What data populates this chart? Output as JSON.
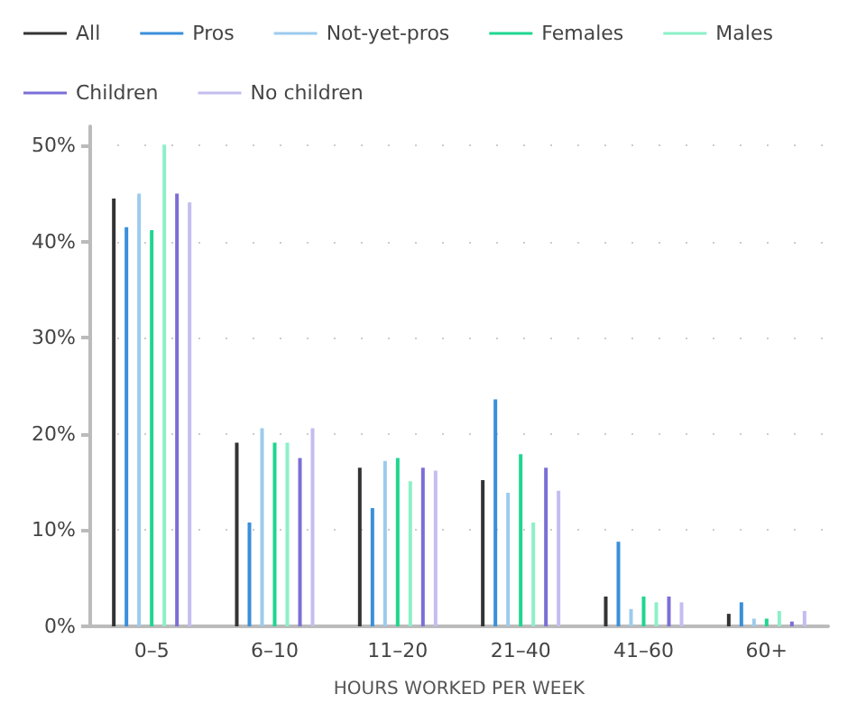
{
  "chart_data": {
    "type": "bar",
    "xlabel": "HOURS WORKED PER WEEK",
    "categories": [
      "0–5",
      "6–10",
      "11–20",
      "21–40",
      "41–60",
      "60+"
    ],
    "series": [
      {
        "name": "All",
        "color": "#333333",
        "values": [
          44.5,
          19.1,
          16.5,
          15.2,
          3.1,
          1.3
        ]
      },
      {
        "name": "Pros",
        "color": "#3a8fd9",
        "values": [
          41.5,
          10.8,
          12.3,
          23.6,
          8.8,
          2.5
        ]
      },
      {
        "name": "Not-yet-pros",
        "color": "#9ccbee",
        "values": [
          45,
          20.6,
          17.2,
          13.9,
          1.8,
          0.8
        ]
      },
      {
        "name": "Females",
        "color": "#1fd68f",
        "values": [
          41.2,
          19.1,
          17.5,
          17.9,
          3.1,
          0.8
        ]
      },
      {
        "name": "Males",
        "color": "#8cf0c8",
        "values": [
          50.1,
          19.1,
          15.1,
          10.8,
          2.5,
          1.6
        ]
      },
      {
        "name": "Children",
        "color": "#7b6fd6",
        "values": [
          45,
          17.5,
          16.5,
          16.5,
          3.1,
          0.5
        ]
      },
      {
        "name": "No children",
        "color": "#c4bdf0",
        "values": [
          44.1,
          20.6,
          16.2,
          14.1,
          2.5,
          1.6
        ]
      }
    ],
    "ylim": [
      0,
      52
    ],
    "yticks": [
      {
        "value": 0,
        "label": "0%"
      },
      {
        "value": 10,
        "label": "10%"
      },
      {
        "value": 20,
        "label": "20%"
      },
      {
        "value": 30,
        "label": "30%"
      },
      {
        "value": 40,
        "label": "40%"
      },
      {
        "value": 50,
        "label": "50%"
      }
    ],
    "grid": "y",
    "legend": "top left"
  }
}
